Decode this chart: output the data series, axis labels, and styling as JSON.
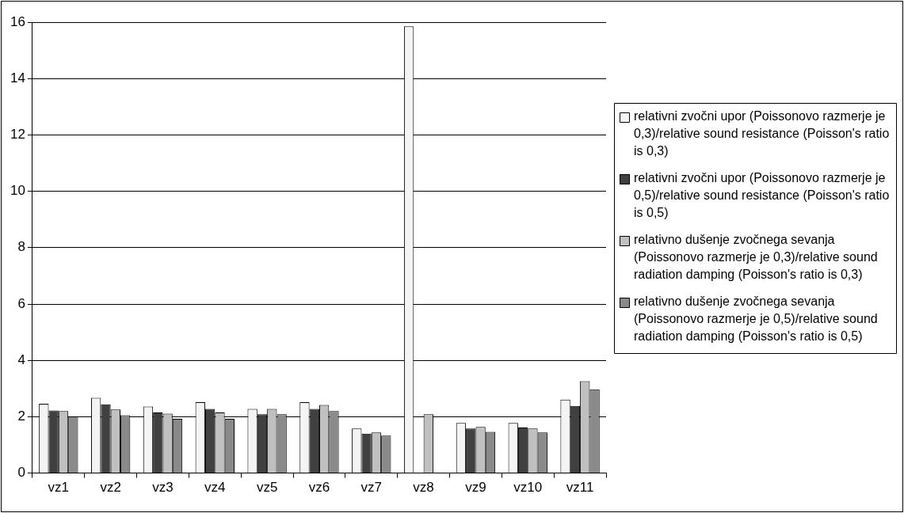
{
  "chart_data": {
    "type": "bar",
    "categories": [
      "vz1",
      "vz2",
      "vz3",
      "vz4",
      "vz5",
      "vz6",
      "vz7",
      "vz8",
      "vz9",
      "vz10",
      "vz11"
    ],
    "series": [
      {
        "name": "relativni zvočni upor (Poissonovo razmerje je 0,3)/relative sound resistance (Poisson's ratio is 0,3)",
        "color": "#f4f4f4",
        "values": [
          2.46,
          2.67,
          2.36,
          2.52,
          2.28,
          2.52,
          1.58,
          15.85,
          1.78,
          1.78,
          2.61
        ]
      },
      {
        "name": "relativni zvočni upor (Poissonovo razmerje je 0,5)/relative sound resistance (Poisson's ratio is 0,5)",
        "color": "#404040",
        "values": [
          2.22,
          2.44,
          2.15,
          2.28,
          2.09,
          2.28,
          1.4,
          null,
          1.58,
          1.62,
          2.38
        ]
      },
      {
        "name": "relativno dušenje zvočnega sevanja (Poissonovo razmerje je 0,3)/relative sound radiation damping (Poisson's ratio is 0,3)",
        "color": "#c0c0c0",
        "values": [
          2.2,
          2.26,
          2.11,
          2.15,
          2.28,
          2.42,
          1.44,
          2.09,
          1.64,
          1.58,
          3.26
        ]
      },
      {
        "name": "relativno dušenje zvočnega sevanja (Poissonovo razmerje je 0,5)/relative sound radiation damping (Poisson's ratio is 0,5)",
        "color": "#8a8a8a",
        "values": [
          2.01,
          2.05,
          1.93,
          1.93,
          2.09,
          2.2,
          1.33,
          null,
          1.46,
          1.44,
          2.97
        ]
      }
    ],
    "ylim": [
      0,
      16
    ],
    "yticks": [
      0,
      2,
      4,
      6,
      8,
      10,
      12,
      14,
      16
    ],
    "grid": "y",
    "legend": "right"
  }
}
